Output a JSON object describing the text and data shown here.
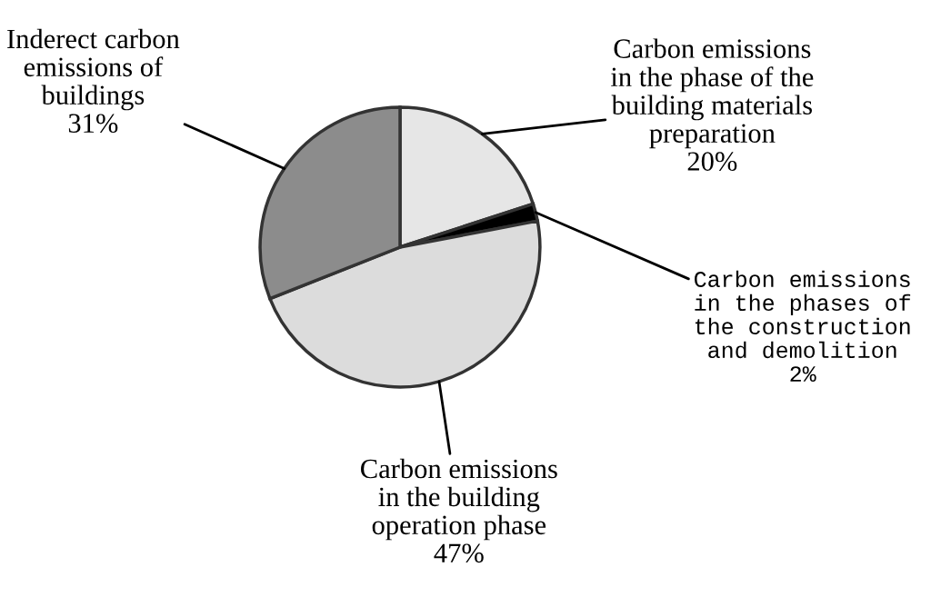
{
  "chart_data": {
    "type": "pie",
    "categories": [
      "Carbon emissions\nin the phase of the\nbuilding materials\npreparation",
      "Carbon emissions\nin the phases of\nthe construction\nand demolition",
      "Carbon emissions\nin the building\noperation phase",
      "Inderect carbon\nemissions of\nbuildings"
    ],
    "values": [
      20,
      2,
      47,
      31
    ],
    "value_labels": [
      "20%",
      "2%",
      "47%",
      "31%"
    ],
    "colors": [
      "#e6e6e6",
      "#000000",
      "#dcdcdc",
      "#8c8c8c"
    ]
  }
}
